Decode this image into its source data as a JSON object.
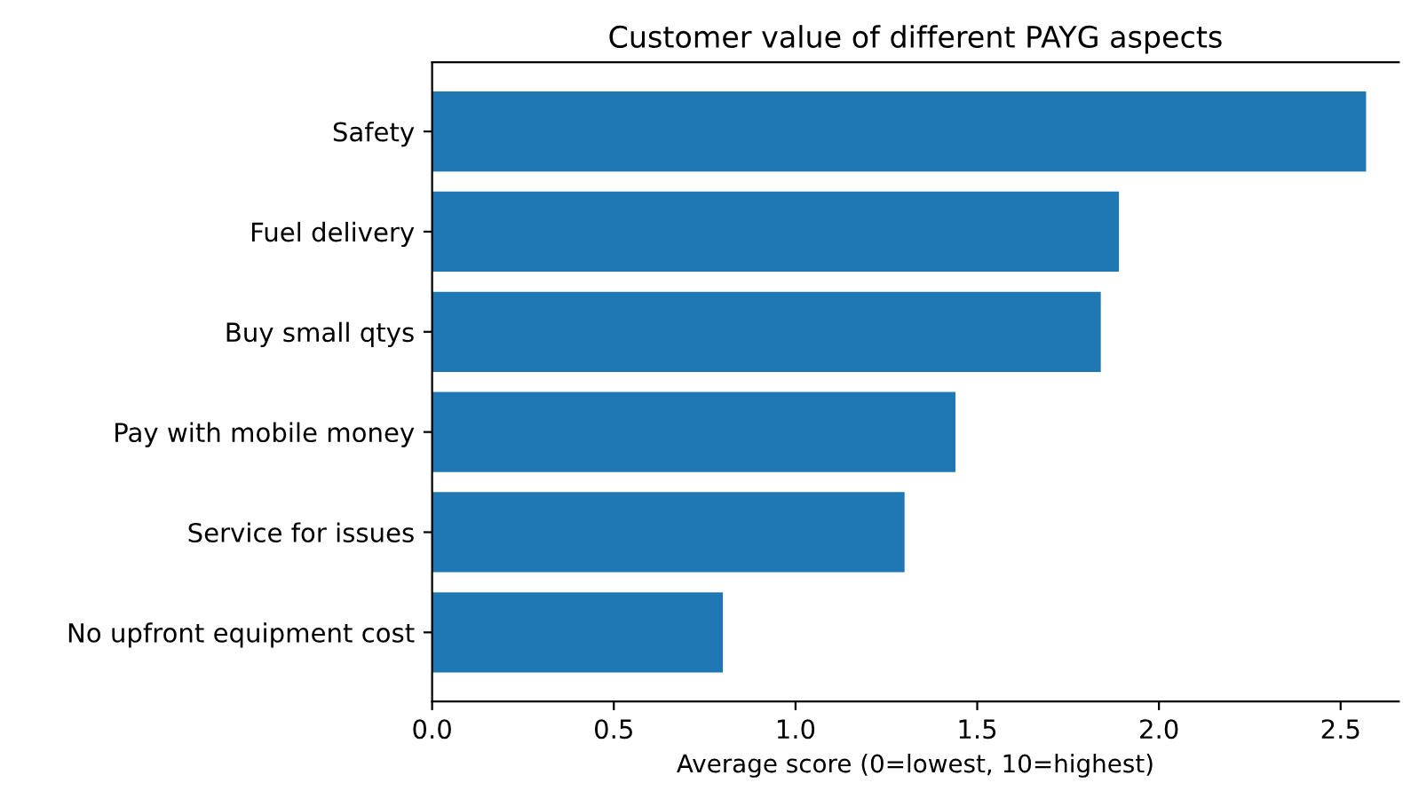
{
  "chart_data": {
    "type": "bar",
    "orientation": "horizontal",
    "title": "Customer value of different PAYG aspects",
    "xlabel": "Average score (0=lowest, 10=highest)",
    "categories": [
      "Safety",
      "Fuel delivery",
      "Buy small qtys",
      "Pay with mobile money",
      "Service for issues",
      "No upfront equipment cost"
    ],
    "values": [
      2.57,
      1.89,
      1.84,
      1.44,
      1.3,
      0.8
    ],
    "color": "#1f77b4",
    "xlim": [
      0,
      2.66
    ],
    "xticks": [
      {
        "value": 0,
        "label": "0.0"
      },
      0.5,
      {
        "value": 1,
        "label": "1.0"
      },
      1.5,
      {
        "value": 2,
        "label": "2.0"
      },
      2.5
    ],
    "grid": false,
    "legend": false
  }
}
